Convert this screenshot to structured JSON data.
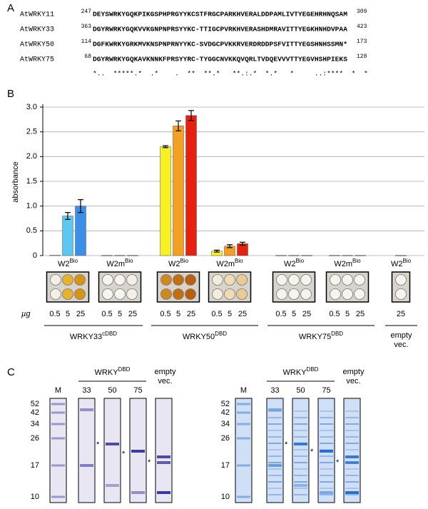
{
  "panel_a": {
    "label": "A",
    "rows": [
      {
        "name": "AtWRKY11",
        "start": 247,
        "sequence": "DEYSWRKYGQKPIKGSPHPRGYYKCSTFRGCPARKHVERALDDPAMLIVTYEGEHRHNQSAM",
        "end": 309
      },
      {
        "name": "AtWRKY33",
        "start": 363,
        "sequence": "DGYRWRKYGQKVVKGNPNPRSYYKC-TTIGCPVRKHVERASHDMRAVITTYEGKHNHDVPAA",
        "end": 423
      },
      {
        "name": "AtWRKY50",
        "start": 114,
        "sequence": "DGFKWRKYGRKMVKNSPNPRNYYKC-SVDGCPVKKRVERDRDDPSFVITTYEGSHNHSSMN*",
        "end": 173
      },
      {
        "name": "AtWRKY75",
        "start": 68,
        "sequence": "DGYRWRKYGQKAVKNNKFPRSYYRC-TYGGCNVKKQVQRLTVDQEVVVTTYEGVHSHPIEKS",
        "end": 128
      }
    ],
    "consensus": "*..  *****.*  .*    .  **  **.*   **.:.*  *.*   *     ..:****  *  *"
  },
  "chart_data": {
    "type": "bar",
    "label": "B",
    "ylabel": "absorbance",
    "unit_label": "µg",
    "ylim": [
      0,
      3
    ],
    "yticks": [
      0,
      0.5,
      {
        "value": 1,
        "label": "1.0"
      },
      1.5,
      {
        "value": 2,
        "label": "2.0"
      },
      2.5,
      {
        "value": 3,
        "label": "3.0"
      }
    ],
    "grid": true,
    "groups": [
      {
        "label": "W2",
        "sup": "Bio",
        "doses": [
          0.5,
          5,
          25
        ],
        "values": [
          0.01,
          0.8,
          1.0
        ],
        "errors": [
          null,
          0.07,
          0.13
        ],
        "colors": [
          "#a6e4f8",
          "#5cc8f0",
          "#3a90e8"
        ],
        "well_colors": [
          "#f4f0e6",
          "#e6b428",
          "#d89414"
        ]
      },
      {
        "label": "W2m",
        "sup": "Bio",
        "doses": [
          0.5,
          5,
          25
        ],
        "values": [
          0.005,
          0.005,
          0.005
        ],
        "colors": [
          "#888888",
          "#888888",
          "#888888"
        ],
        "well_colors": [
          "#f6f4ee",
          "#f6f4ee",
          "#f4f0e8"
        ]
      },
      {
        "label": "W2",
        "sup": "Bio",
        "doses": [
          0.5,
          5,
          25
        ],
        "values": [
          2.2,
          2.62,
          2.83
        ],
        "errors": [
          0.02,
          0.1,
          0.1
        ],
        "colors": [
          "#f8f020",
          "#f4a020",
          "#e82010"
        ],
        "well_colors": [
          "#d08820",
          "#c07010",
          "#b86010"
        ]
      },
      {
        "label": "W2m",
        "sup": "Bio",
        "doses": [
          0.5,
          5,
          25
        ],
        "values": [
          0.09,
          0.19,
          0.24
        ],
        "errors": [
          0.02,
          0.03,
          0.03
        ],
        "colors": [
          "#f8f020",
          "#f4a020",
          "#e82010"
        ],
        "well_colors": [
          "#f2ecdc",
          "#eedcb4",
          "#e8cc94"
        ]
      },
      {
        "label": "W2",
        "sup": "Bio",
        "doses": [
          0.5,
          5,
          25
        ],
        "values": [
          0.005,
          0.005,
          0.005
        ],
        "colors": [
          "#888888",
          "#888888",
          "#888888"
        ],
        "well_colors": [
          "#f6f4ee",
          "#f6f4ee",
          "#f6f4ee"
        ]
      },
      {
        "label": "W2m",
        "sup": "Bio",
        "doses": [
          0.5,
          5,
          25
        ],
        "values": [
          0.005,
          0.005,
          0.005
        ],
        "colors": [
          "#888888",
          "#888888",
          "#888888"
        ],
        "well_colors": [
          "#f6f4ee",
          "#f6f4ee",
          "#f6f4ee"
        ]
      },
      {
        "label": "W2",
        "sup": "Bio",
        "doses": [
          25
        ],
        "values": [
          0.005
        ],
        "colors": [
          "#888888"
        ],
        "well_colors": [
          "#f6f4ee"
        ]
      }
    ],
    "proteins": [
      {
        "name": "WRKY33",
        "sup": "cDBD"
      },
      {
        "name": "WRKY50",
        "sup": "DBD"
      },
      {
        "name": "WRKY75",
        "sup": "DBD"
      },
      {
        "lines": [
          "empty",
          "vec."
        ]
      }
    ]
  },
  "panel_c": {
    "label": "C",
    "gels": [
      {
        "header": "WRKY",
        "header_sup": "DBD",
        "marker_label": "M",
        "markers": [
          52,
          42,
          34,
          26,
          17,
          10
        ],
        "lanes": [
          {
            "label": "33",
            "mark": "*"
          },
          {
            "label": "50",
            "mark": "*"
          },
          {
            "label": "75",
            "mark": "*"
          }
        ],
        "empty_lines": [
          "empty",
          "vec."
        ]
      },
      {
        "header": "WRKY",
        "header_sup": "DBD",
        "marker_label": "M",
        "markers": [
          52,
          42,
          34,
          26,
          17,
          10
        ],
        "lanes": [
          {
            "label": "33",
            "mark": "*"
          },
          {
            "label": "50",
            "mark": "*"
          },
          {
            "label": "75",
            "mark": "*"
          }
        ],
        "empty_lines": [
          "empty",
          "vec."
        ]
      }
    ]
  }
}
